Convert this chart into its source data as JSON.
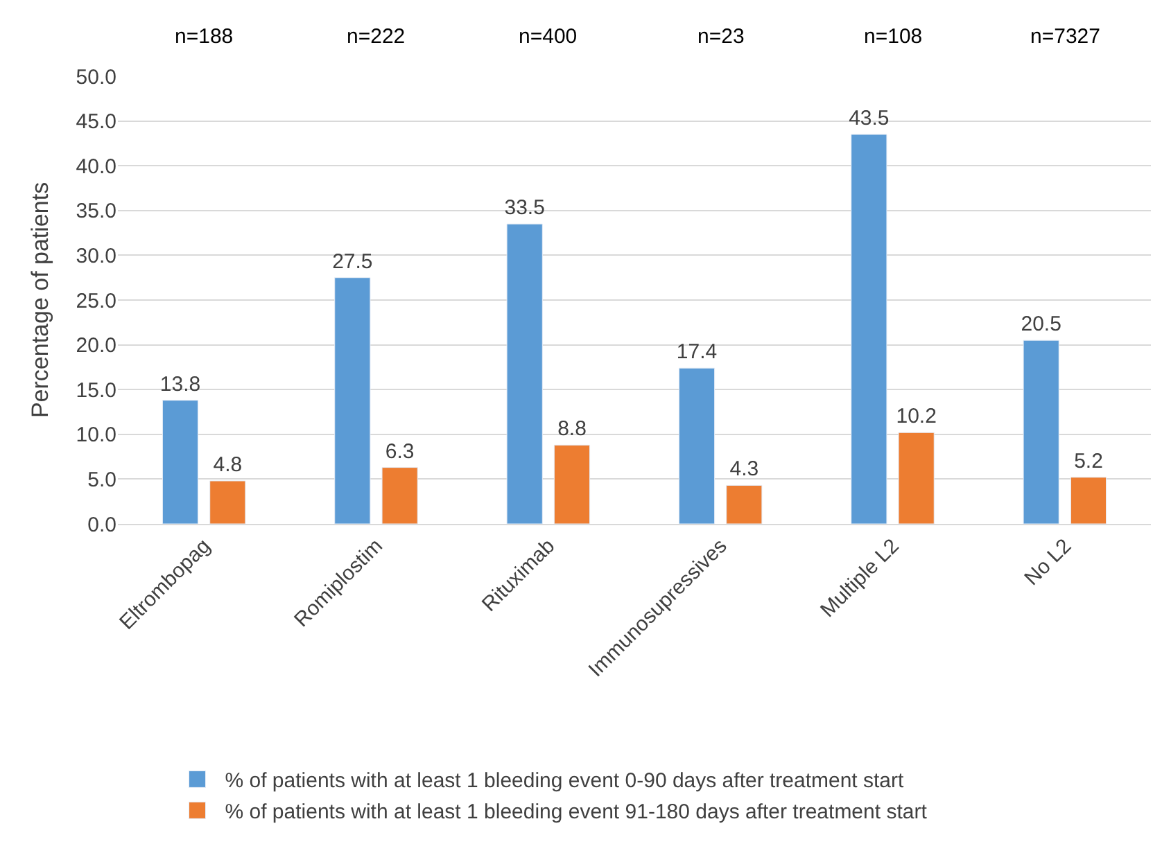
{
  "chart_data": {
    "type": "bar",
    "ylabel": "Percentage of patients",
    "categories": [
      "Eltrombopag",
      "Romiplostim",
      "Rituximab",
      "Immunosupressives",
      "Multiple L2",
      "No L2"
    ],
    "series": [
      {
        "name": "% of patients with at least 1 bleeding event 0-90 days after treatment start",
        "color": "#5b9bd5",
        "values": [
          13.8,
          27.5,
          33.5,
          17.4,
          43.5,
          20.5
        ]
      },
      {
        "name": "% of patients with at least 1 bleeding event 91-180 days after treatment start",
        "color": "#ed7d31",
        "values": [
          4.8,
          6.3,
          8.8,
          4.3,
          10.2,
          5.2
        ]
      }
    ],
    "ylim": [
      0,
      50
    ],
    "yticks": [
      {
        "value": 0,
        "label": "0.0"
      },
      {
        "value": 5,
        "label": "5.0"
      },
      {
        "value": 10,
        "label": "10.0"
      },
      {
        "value": 15,
        "label": "15.0"
      },
      {
        "value": 20,
        "label": "20.0"
      },
      {
        "value": 25,
        "label": "25.0"
      },
      {
        "value": 30,
        "label": "30.0"
      },
      {
        "value": 35,
        "label": "35.0"
      },
      {
        "value": 40,
        "label": "40.0"
      },
      {
        "value": 45,
        "label": "45.0"
      },
      {
        "value": 50,
        "label": "50.0"
      }
    ],
    "grid": "y",
    "legend": "bottom",
    "data_labels": true,
    "annotations": [
      "n=188",
      "n=222",
      "n=400",
      "n=23",
      "n=108",
      "n=7327"
    ]
  }
}
